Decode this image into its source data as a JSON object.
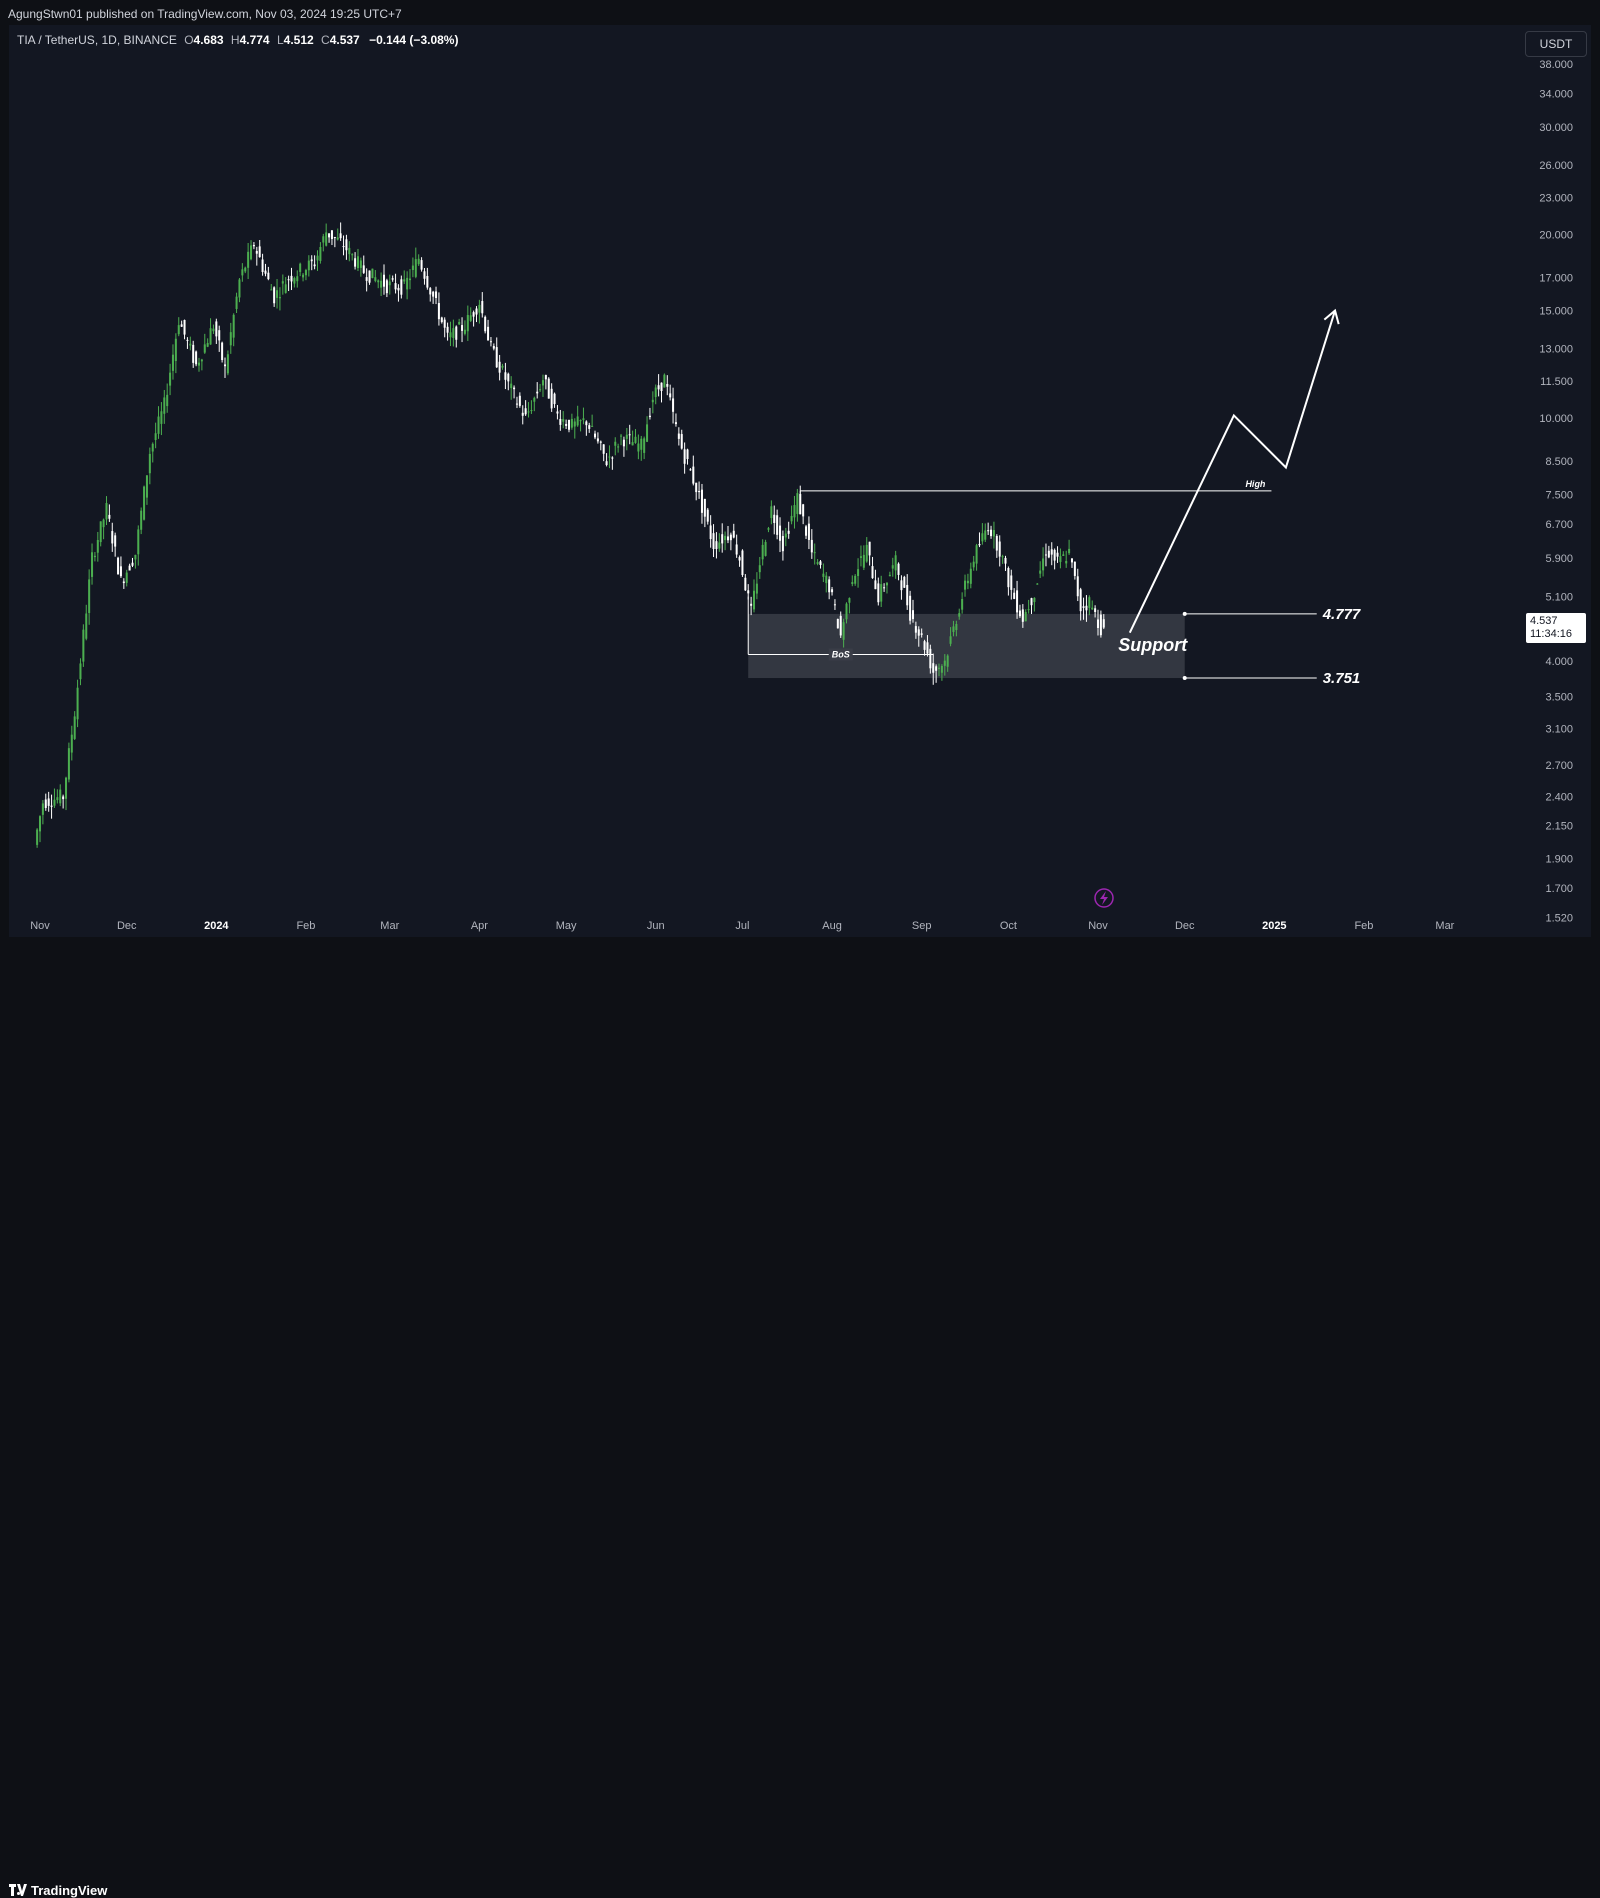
{
  "header": {
    "published_by": "AgungStwn01 published on TradingView.com, Nov 03, 2024 19:25 UTC+7"
  },
  "legend": {
    "symbol": "TIA / TetherUS, 1D, BINANCE",
    "o_label": "O",
    "o": "4.683",
    "h_label": "H",
    "h": "4.774",
    "l_label": "L",
    "l": "4.512",
    "c_label": "C",
    "c": "4.537",
    "change": "−0.144 (−3.08%)"
  },
  "currency_button": "USDT",
  "last_price": {
    "price": "4.537",
    "countdown": "11:34:16"
  },
  "footer": {
    "brand": "TradingView"
  },
  "colors": {
    "background": "#131722",
    "up_candle": "#4caf50",
    "down_candle": "#ffffff",
    "support_zone": "#3a3d47",
    "drawing": "#ffffff",
    "event_icon": "#9c27b0"
  },
  "chart_data": {
    "type": "candlestick",
    "symbol": "TIA / TetherUS",
    "interval": "1D",
    "exchange": "BINANCE",
    "y_scale": "log",
    "ylim": [
      1.45,
      41.0
    ],
    "y_ticks": [
      "38.000",
      "34.000",
      "30.000",
      "26.000",
      "23.000",
      "20.000",
      "17.000",
      "15.000",
      "13.000",
      "11.500",
      "10.000",
      "8.500",
      "7.500",
      "6.700",
      "5.900",
      "5.100",
      "4.000",
      "3.500",
      "3.100",
      "2.700",
      "2.400",
      "2.150",
      "1.900",
      "1.700",
      "1.520"
    ],
    "x_ticks": [
      {
        "label": "Nov",
        "date": "2023-11-01",
        "bold": false
      },
      {
        "label": "Dec",
        "date": "2023-12-01",
        "bold": false
      },
      {
        "label": "2024",
        "date": "2024-01-01",
        "bold": true
      },
      {
        "label": "Feb",
        "date": "2024-02-01",
        "bold": false
      },
      {
        "label": "Mar",
        "date": "2024-03-01",
        "bold": false
      },
      {
        "label": "Apr",
        "date": "2024-04-01",
        "bold": false
      },
      {
        "label": "May",
        "date": "2024-05-01",
        "bold": false
      },
      {
        "label": "Jun",
        "date": "2024-06-01",
        "bold": false
      },
      {
        "label": "Jul",
        "date": "2024-07-01",
        "bold": false
      },
      {
        "label": "Aug",
        "date": "2024-08-01",
        "bold": false
      },
      {
        "label": "Sep",
        "date": "2024-09-01",
        "bold": false
      },
      {
        "label": "Oct",
        "date": "2024-10-01",
        "bold": false
      },
      {
        "label": "Nov",
        "date": "2024-11-01",
        "bold": false
      },
      {
        "label": "Dec",
        "date": "2024-12-01",
        "bold": false
      },
      {
        "label": "2025",
        "date": "2025-01-01",
        "bold": true
      },
      {
        "label": "Feb",
        "date": "2025-02-01",
        "bold": false
      },
      {
        "label": "Mar",
        "date": "2025-03-01",
        "bold": false
      }
    ],
    "price_path": [
      [
        "2023-10-31",
        2.0
      ],
      [
        "2023-11-03",
        2.35
      ],
      [
        "2023-11-10",
        2.4
      ],
      [
        "2023-11-14",
        3.3
      ],
      [
        "2023-11-20",
        5.9
      ],
      [
        "2023-11-25",
        7.1
      ],
      [
        "2023-11-30",
        5.4
      ],
      [
        "2023-12-05",
        6.0
      ],
      [
        "2023-12-10",
        8.8
      ],
      [
        "2023-12-15",
        10.5
      ],
      [
        "2023-12-20",
        14.5
      ],
      [
        "2023-12-26",
        12.2
      ],
      [
        "2024-01-01",
        14.2
      ],
      [
        "2024-01-05",
        12.0
      ],
      [
        "2024-01-10",
        16.8
      ],
      [
        "2024-01-15",
        19.3
      ],
      [
        "2024-01-22",
        15.8
      ],
      [
        "2024-01-27",
        17.0
      ],
      [
        "2024-02-05",
        18.0
      ],
      [
        "2024-02-09",
        20.2
      ],
      [
        "2024-02-15",
        19.2
      ],
      [
        "2024-02-22",
        17.4
      ],
      [
        "2024-03-01",
        16.5
      ],
      [
        "2024-03-07",
        16.4
      ],
      [
        "2024-03-12",
        18.3
      ],
      [
        "2024-03-17",
        15.8
      ],
      [
        "2024-03-22",
        13.5
      ],
      [
        "2024-03-28",
        14.2
      ],
      [
        "2024-04-02",
        15.5
      ],
      [
        "2024-04-06",
        13.0
      ],
      [
        "2024-04-13",
        11.1
      ],
      [
        "2024-04-18",
        10.0
      ],
      [
        "2024-04-24",
        11.6
      ],
      [
        "2024-04-29",
        10.1
      ],
      [
        "2024-05-04",
        9.7
      ],
      [
        "2024-05-09",
        9.9
      ],
      [
        "2024-05-16",
        8.5
      ],
      [
        "2024-05-21",
        9.3
      ],
      [
        "2024-05-28",
        9.0
      ],
      [
        "2024-06-01",
        10.8
      ],
      [
        "2024-06-05",
        11.6
      ],
      [
        "2024-06-10",
        9.2
      ],
      [
        "2024-06-16",
        7.7
      ],
      [
        "2024-06-22",
        6.2
      ],
      [
        "2024-06-28",
        6.5
      ],
      [
        "2024-07-01",
        5.9
      ],
      [
        "2024-07-05",
        4.8
      ],
      [
        "2024-07-08",
        5.8
      ],
      [
        "2024-07-12",
        7.1
      ],
      [
        "2024-07-16",
        6.2
      ],
      [
        "2024-07-21",
        7.4
      ],
      [
        "2024-07-26",
        6.0
      ],
      [
        "2024-08-01",
        5.3
      ],
      [
        "2024-08-05",
        4.4
      ],
      [
        "2024-08-09",
        5.5
      ],
      [
        "2024-08-14",
        6.1
      ],
      [
        "2024-08-18",
        5.1
      ],
      [
        "2024-08-24",
        5.8
      ],
      [
        "2024-08-29",
        4.8
      ],
      [
        "2024-09-03",
        4.25
      ],
      [
        "2024-09-06",
        3.85
      ],
      [
        "2024-09-10",
        4.0
      ],
      [
        "2024-09-15",
        4.9
      ],
      [
        "2024-09-20",
        5.9
      ],
      [
        "2024-09-25",
        6.7
      ],
      [
        "2024-09-29",
        6.1
      ],
      [
        "2024-10-03",
        5.2
      ],
      [
        "2024-10-07",
        4.7
      ],
      [
        "2024-10-11",
        5.2
      ],
      [
        "2024-10-15",
        6.1
      ],
      [
        "2024-10-19",
        5.8
      ],
      [
        "2024-10-23",
        6.0
      ],
      [
        "2024-10-27",
        4.9
      ],
      [
        "2024-10-30",
        5.0
      ],
      [
        "2024-11-03",
        4.537
      ]
    ],
    "last_close": 4.537,
    "annotations": {
      "high_label": "High",
      "high_level": 7.6,
      "high_start": "2024-07-21",
      "high_end": "2024-12-31",
      "bos_label": "BoS",
      "bos_level": 4.1,
      "bos_start": "2024-07-03",
      "bos_end": "2024-09-05",
      "support_label": "Support",
      "support_top": 4.777,
      "support_bottom": 3.751,
      "support_start": "2024-07-03",
      "support_end": "2024-12-01",
      "support_top_label": "4.777",
      "support_bottom_label": "3.751",
      "projection": [
        [
          "2024-11-12",
          4.45
        ],
        [
          "2024-12-18",
          10.1
        ],
        [
          "2025-01-05",
          8.3
        ],
        [
          "2025-01-22",
          15.0
        ]
      ]
    }
  }
}
